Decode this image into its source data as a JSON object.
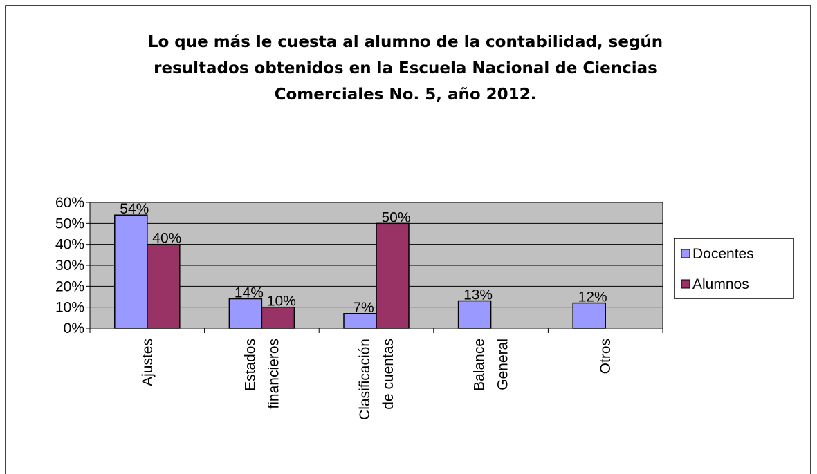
{
  "chart_data": {
    "type": "bar",
    "title": "Lo que más le cuesta al alumno de la contabilidad, según\nresultados obtenidos en la Escuela Nacional de Ciencias\nComerciales No. 5, año 2012.",
    "categories": [
      "Ajustes",
      "Estados\nfinancieros",
      "Clasificación\nde cuentas",
      "Balance\nGeneral",
      "Otros"
    ],
    "series": [
      {
        "name": "Docentes",
        "color": "#9999ff",
        "values": [
          54,
          14,
          7,
          13,
          12
        ],
        "value_labels": [
          "54%",
          "14%",
          "7%",
          "13%",
          "12%"
        ]
      },
      {
        "name": "Alumnos",
        "color": "#993366",
        "values": [
          40,
          10,
          50,
          null,
          null
        ],
        "value_labels": [
          "40%",
          "10%",
          "50%",
          null,
          null
        ]
      }
    ],
    "ylim": [
      0,
      60
    ],
    "yticks": [
      {
        "value": 0,
        "label": "0%"
      },
      {
        "value": 10,
        "label": "10%"
      },
      {
        "value": 20,
        "label": "20%"
      },
      {
        "value": 30,
        "label": "30%"
      },
      {
        "value": 40,
        "label": "40%"
      },
      {
        "value": 50,
        "label": "50%"
      },
      {
        "value": 60,
        "label": "60%"
      }
    ],
    "grid": true,
    "legend": "right",
    "plot_background": "#c0c0c0"
  }
}
